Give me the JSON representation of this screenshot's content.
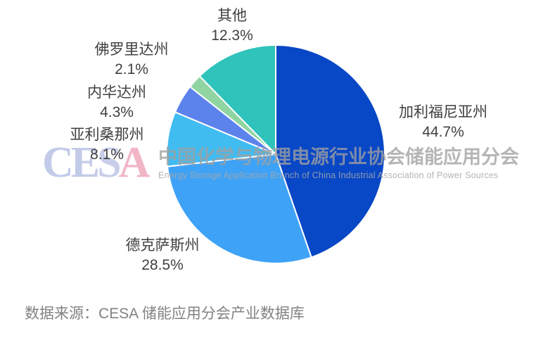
{
  "chart_data": {
    "type": "pie",
    "title": "",
    "unit": "%",
    "direction": "clockwise",
    "start_angle_deg": 0,
    "center": [
      392,
      219
    ],
    "radius": 155,
    "slice_border_color": "#ffffff",
    "slices": [
      {
        "label": "加利福尼亚州",
        "value": 44.7,
        "color": "#0847C6",
        "label_xy": [
          630,
          146
        ]
      },
      {
        "label": "德克萨斯州",
        "value": 28.5,
        "color": "#3EA2F6",
        "label_xy": [
          231,
          335
        ]
      },
      {
        "label": "亚利桑那州",
        "value": 8.1,
        "color": "#41BCF1",
        "label_xy": [
          152,
          178
        ]
      },
      {
        "label": "内华达州",
        "value": 4.3,
        "color": "#5C83EC",
        "label_xy": [
          166,
          118
        ]
      },
      {
        "label": "佛罗里达州",
        "value": 2.1,
        "color": "#90D4A2",
        "label_xy": [
          187,
          57
        ]
      },
      {
        "label": "其他",
        "value": 12.3,
        "color": "#2FC3BB",
        "label_xy": [
          330,
          9
        ]
      }
    ],
    "legend_position": "none",
    "labels_show_percent": true
  },
  "watermark": {
    "logo_letters": [
      {
        "ch": "C",
        "color": "#c3cbe9"
      },
      {
        "ch": "E",
        "color": "#c3cbe9"
      },
      {
        "ch": "S",
        "color": "#c8cdea"
      },
      {
        "ch": "A",
        "color": "#f2b5c6"
      }
    ],
    "line1_cn": "中国化学与物理电源行业协会储能应用分会",
    "line2_en": "Energy Storage Application Branch of China Industrial Association of Power Sources"
  },
  "source": {
    "text": "数据来源：CESA 储能应用分会产业数据库"
  }
}
